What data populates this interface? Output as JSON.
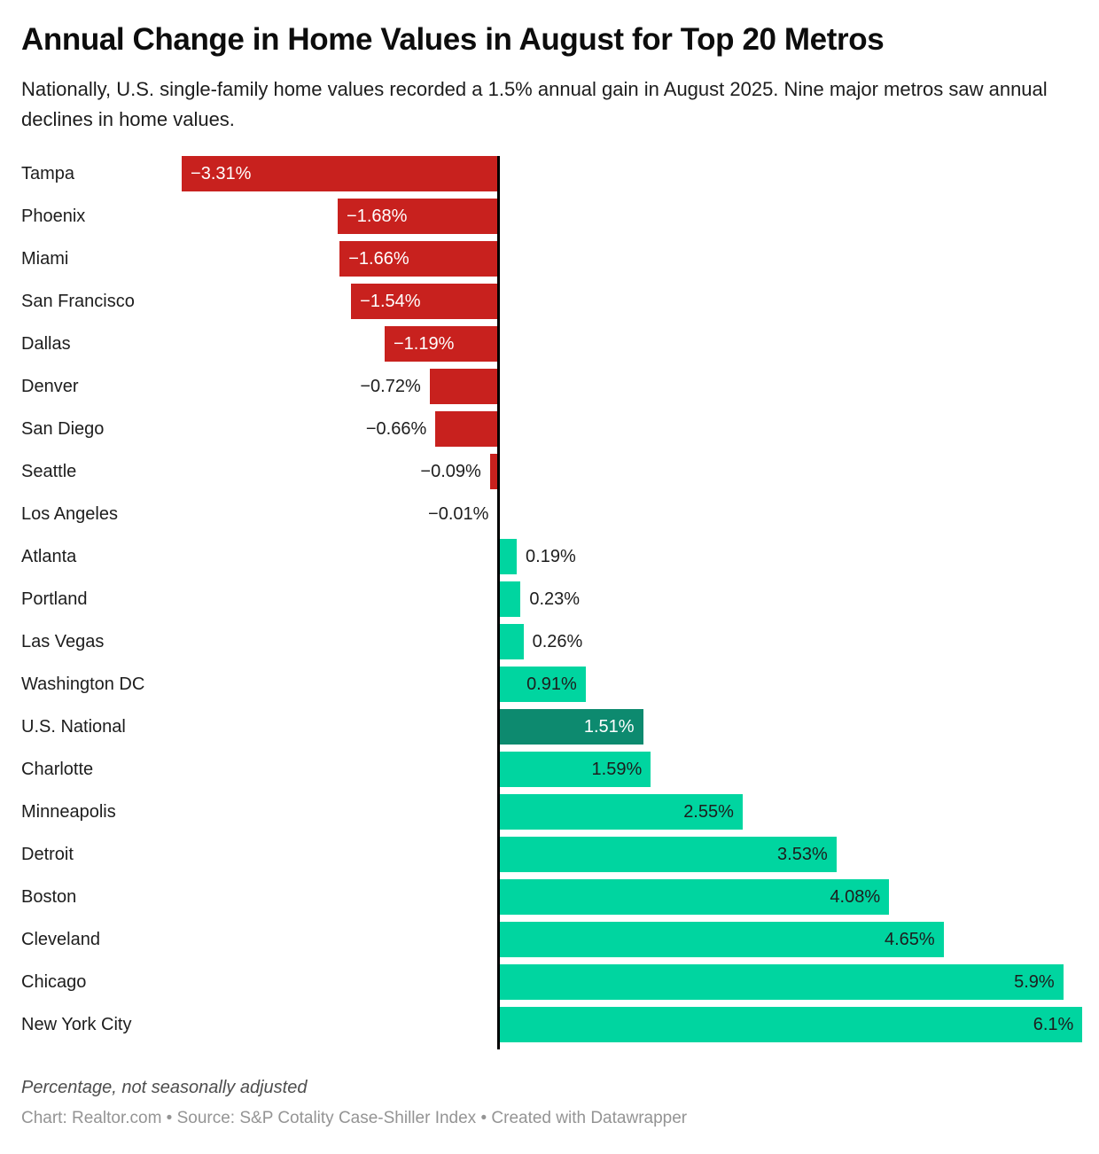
{
  "header": {
    "title": "Annual Change in Home Values in August for Top 20 Metros",
    "subtitle": "Nationally, U.S. single-family home values recorded a 1.5% annual gain in August 2025. Nine major metros saw annual declines in home values."
  },
  "footer": {
    "note": "Percentage, not seasonally adjusted",
    "source": "Chart: Realtor.com • Source: S&P Cotality Case-Shiller Index • Created with Datawrapper"
  },
  "colors": {
    "negative_bar": "#c8211e",
    "positive_bar": "#00d5a0",
    "highlight_bar": "#0d8a6f",
    "axis_line": "#000000",
    "label_on_red": "#ffffff",
    "label_on_green": "#1d1d1d",
    "label_on_highlight": "#ffffff"
  },
  "chart_data": {
    "type": "bar",
    "orientation": "horizontal",
    "title": "Annual Change in Home Values in August for Top 20 Metros",
    "unit": "percent, not seasonally adjusted",
    "xlim": [
      -3.31,
      6.1
    ],
    "grid": false,
    "legend": false,
    "highlight_category": "U.S. National",
    "categories": [
      "Tampa",
      "Phoenix",
      "Miami",
      "San Francisco",
      "Dallas",
      "Denver",
      "San Diego",
      "Seattle",
      "Los Angeles",
      "Atlanta",
      "Portland",
      "Las Vegas",
      "Washington DC",
      "U.S. National",
      "Charlotte",
      "Minneapolis",
      "Detroit",
      "Boston",
      "Cleveland",
      "Chicago",
      "New York City"
    ],
    "values": [
      -3.31,
      -1.68,
      -1.66,
      -1.54,
      -1.19,
      -0.72,
      -0.66,
      -0.09,
      -0.01,
      0.19,
      0.23,
      0.26,
      0.91,
      1.51,
      1.59,
      2.55,
      3.53,
      4.08,
      4.65,
      5.9,
      6.1
    ],
    "value_labels": [
      "−3.31%",
      "−1.68%",
      "−1.66%",
      "−1.54%",
      "−1.19%",
      "−0.72%",
      "−0.66%",
      "−0.09%",
      "−0.01%",
      "0.19%",
      "0.23%",
      "0.26%",
      "0.91%",
      "1.51%",
      "1.59%",
      "2.55%",
      "3.53%",
      "4.08%",
      "4.65%",
      "5.9%",
      "6.1%"
    ]
  }
}
